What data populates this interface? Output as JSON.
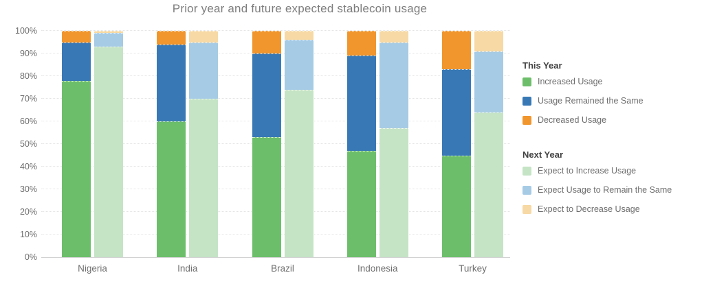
{
  "title": "Prior year and future expected stablecoin usage",
  "chart_data": {
    "type": "bar",
    "stacked": true,
    "title": "Prior year and future expected stablecoin usage",
    "categories": [
      "Nigeria",
      "India",
      "Brazil",
      "Indonesia",
      "Turkey"
    ],
    "ylim": [
      0,
      100
    ],
    "yticks": [
      0,
      10,
      20,
      30,
      40,
      50,
      60,
      70,
      80,
      90,
      100
    ],
    "ytick_labels": [
      "0%",
      "10%",
      "20%",
      "30%",
      "40%",
      "50%",
      "60%",
      "70%",
      "80%",
      "90%",
      "100%"
    ],
    "grid": true,
    "legend_position": "right",
    "bar_groups": [
      "This Year",
      "Next Year"
    ],
    "series": [
      {
        "name": "Increased Usage",
        "bar": "This Year",
        "color": "#6CBE6B",
        "values": [
          78,
          60,
          53,
          47,
          45
        ]
      },
      {
        "name": "Usage Remained the Same",
        "bar": "This Year",
        "color": "#3879B5",
        "values": [
          17,
          34,
          37,
          42,
          38
        ]
      },
      {
        "name": "Decreased Usage",
        "bar": "This Year",
        "color": "#F0962D",
        "values": [
          5,
          6,
          10,
          11,
          17
        ]
      },
      {
        "name": "Expect to Increase Usage",
        "bar": "Next Year",
        "color": "#C5E4C6",
        "values": [
          93,
          70,
          74,
          57,
          64
        ]
      },
      {
        "name": "Expect Usage to Remain the Same",
        "bar": "Next Year",
        "color": "#A6CBE4",
        "values": [
          6,
          25,
          22,
          38,
          27
        ]
      },
      {
        "name": "Expect to Decrease Usage",
        "bar": "Next Year",
        "color": "#F6D9A4",
        "values": [
          1,
          5,
          4,
          5,
          9
        ]
      }
    ]
  },
  "legend": {
    "groups": [
      {
        "title": "This Year",
        "items": [
          "Increased Usage",
          "Usage Remained the Same",
          "Decreased Usage"
        ]
      },
      {
        "title": "Next Year",
        "items": [
          "Expect to Increase Usage",
          "Expect Usage to Remain the Same",
          "Expect to Decrease Usage"
        ]
      }
    ]
  }
}
